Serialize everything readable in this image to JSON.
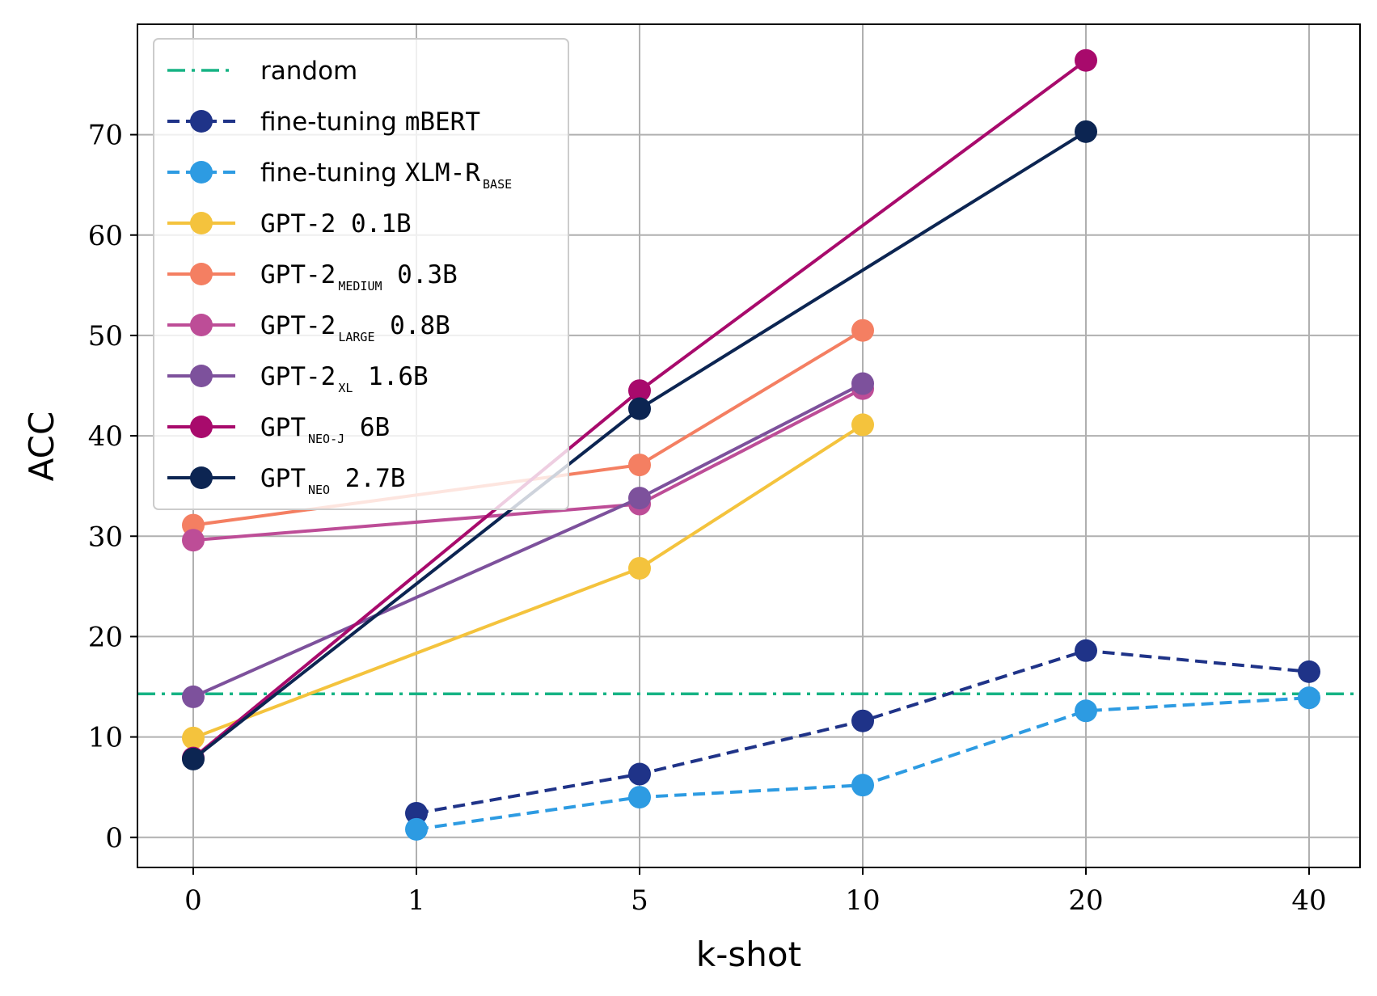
{
  "chart_data": {
    "type": "line",
    "title": "",
    "xlabel": "k-shot",
    "ylabel": "ACC",
    "categories": [
      "0",
      "1",
      "5",
      "10",
      "20",
      "40"
    ],
    "ylim": [
      -3,
      81
    ],
    "yticks": [
      0,
      10,
      20,
      30,
      40,
      50,
      60,
      70
    ],
    "grid": true,
    "legend_position": "top-left",
    "random_baseline": {
      "name": "random",
      "value": 14.3,
      "color": "#16b384"
    },
    "series": [
      {
        "name": "fine-tuning mBERT",
        "legend": {
          "pre": "fine-tuning ",
          "mono": "mBERT",
          "sub": "",
          "post": ""
        },
        "color": "#1f3388",
        "dashed": true,
        "values": [
          null,
          2.4,
          6.3,
          11.6,
          18.6,
          16.5
        ]
      },
      {
        "name": "fine-tuning XLM-R BASE",
        "legend": {
          "pre": "fine-tuning ",
          "mono": "XLM-R",
          "sub": "BASE",
          "post": ""
        },
        "color": "#2d9be2",
        "dashed": true,
        "values": [
          null,
          0.8,
          4.0,
          5.2,
          12.6,
          13.9
        ]
      },
      {
        "name": "GPT-2 0.1B",
        "legend": {
          "pre": "",
          "mono": "GPT-2",
          "sub": "",
          "post": " 0.1B"
        },
        "color": "#f4c33d",
        "dashed": false,
        "values": [
          9.9,
          null,
          26.8,
          41.1,
          null,
          null
        ]
      },
      {
        "name": "GPT-2 MEDIUM 0.3B",
        "legend": {
          "pre": "",
          "mono": "GPT-2",
          "sub": "MEDIUM",
          "post": " 0.3B"
        },
        "color": "#f47f62",
        "dashed": false,
        "values": [
          31.1,
          null,
          37.1,
          50.5,
          null,
          null
        ]
      },
      {
        "name": "GPT-2 LARGE 0.8B",
        "legend": {
          "pre": "",
          "mono": "GPT-2",
          "sub": "LARGE",
          "post": " 0.8B"
        },
        "color": "#bd4d97",
        "dashed": false,
        "values": [
          29.6,
          null,
          33.2,
          44.7,
          null,
          null
        ]
      },
      {
        "name": "GPT-2 XL 1.6B",
        "legend": {
          "pre": "",
          "mono": "GPT-2",
          "sub": "XL",
          "post": " 1.6B"
        },
        "color": "#7d519c",
        "dashed": false,
        "values": [
          14.0,
          null,
          33.8,
          45.2,
          null,
          null
        ]
      },
      {
        "name": "GPT NEO-J 6B",
        "legend": {
          "pre": "",
          "mono": "GPT",
          "sub": "NEO-J",
          "post": " 6B"
        },
        "color": "#a80a6c",
        "dashed": false,
        "values": [
          7.9,
          null,
          44.5,
          null,
          77.4,
          null
        ]
      },
      {
        "name": "GPT NEO 2.7B",
        "legend": {
          "pre": "",
          "mono": "GPT",
          "sub": "NEO",
          "post": " 2.7B"
        },
        "color": "#0c2552",
        "dashed": false,
        "values": [
          7.8,
          null,
          42.7,
          null,
          70.3,
          null
        ]
      }
    ]
  }
}
